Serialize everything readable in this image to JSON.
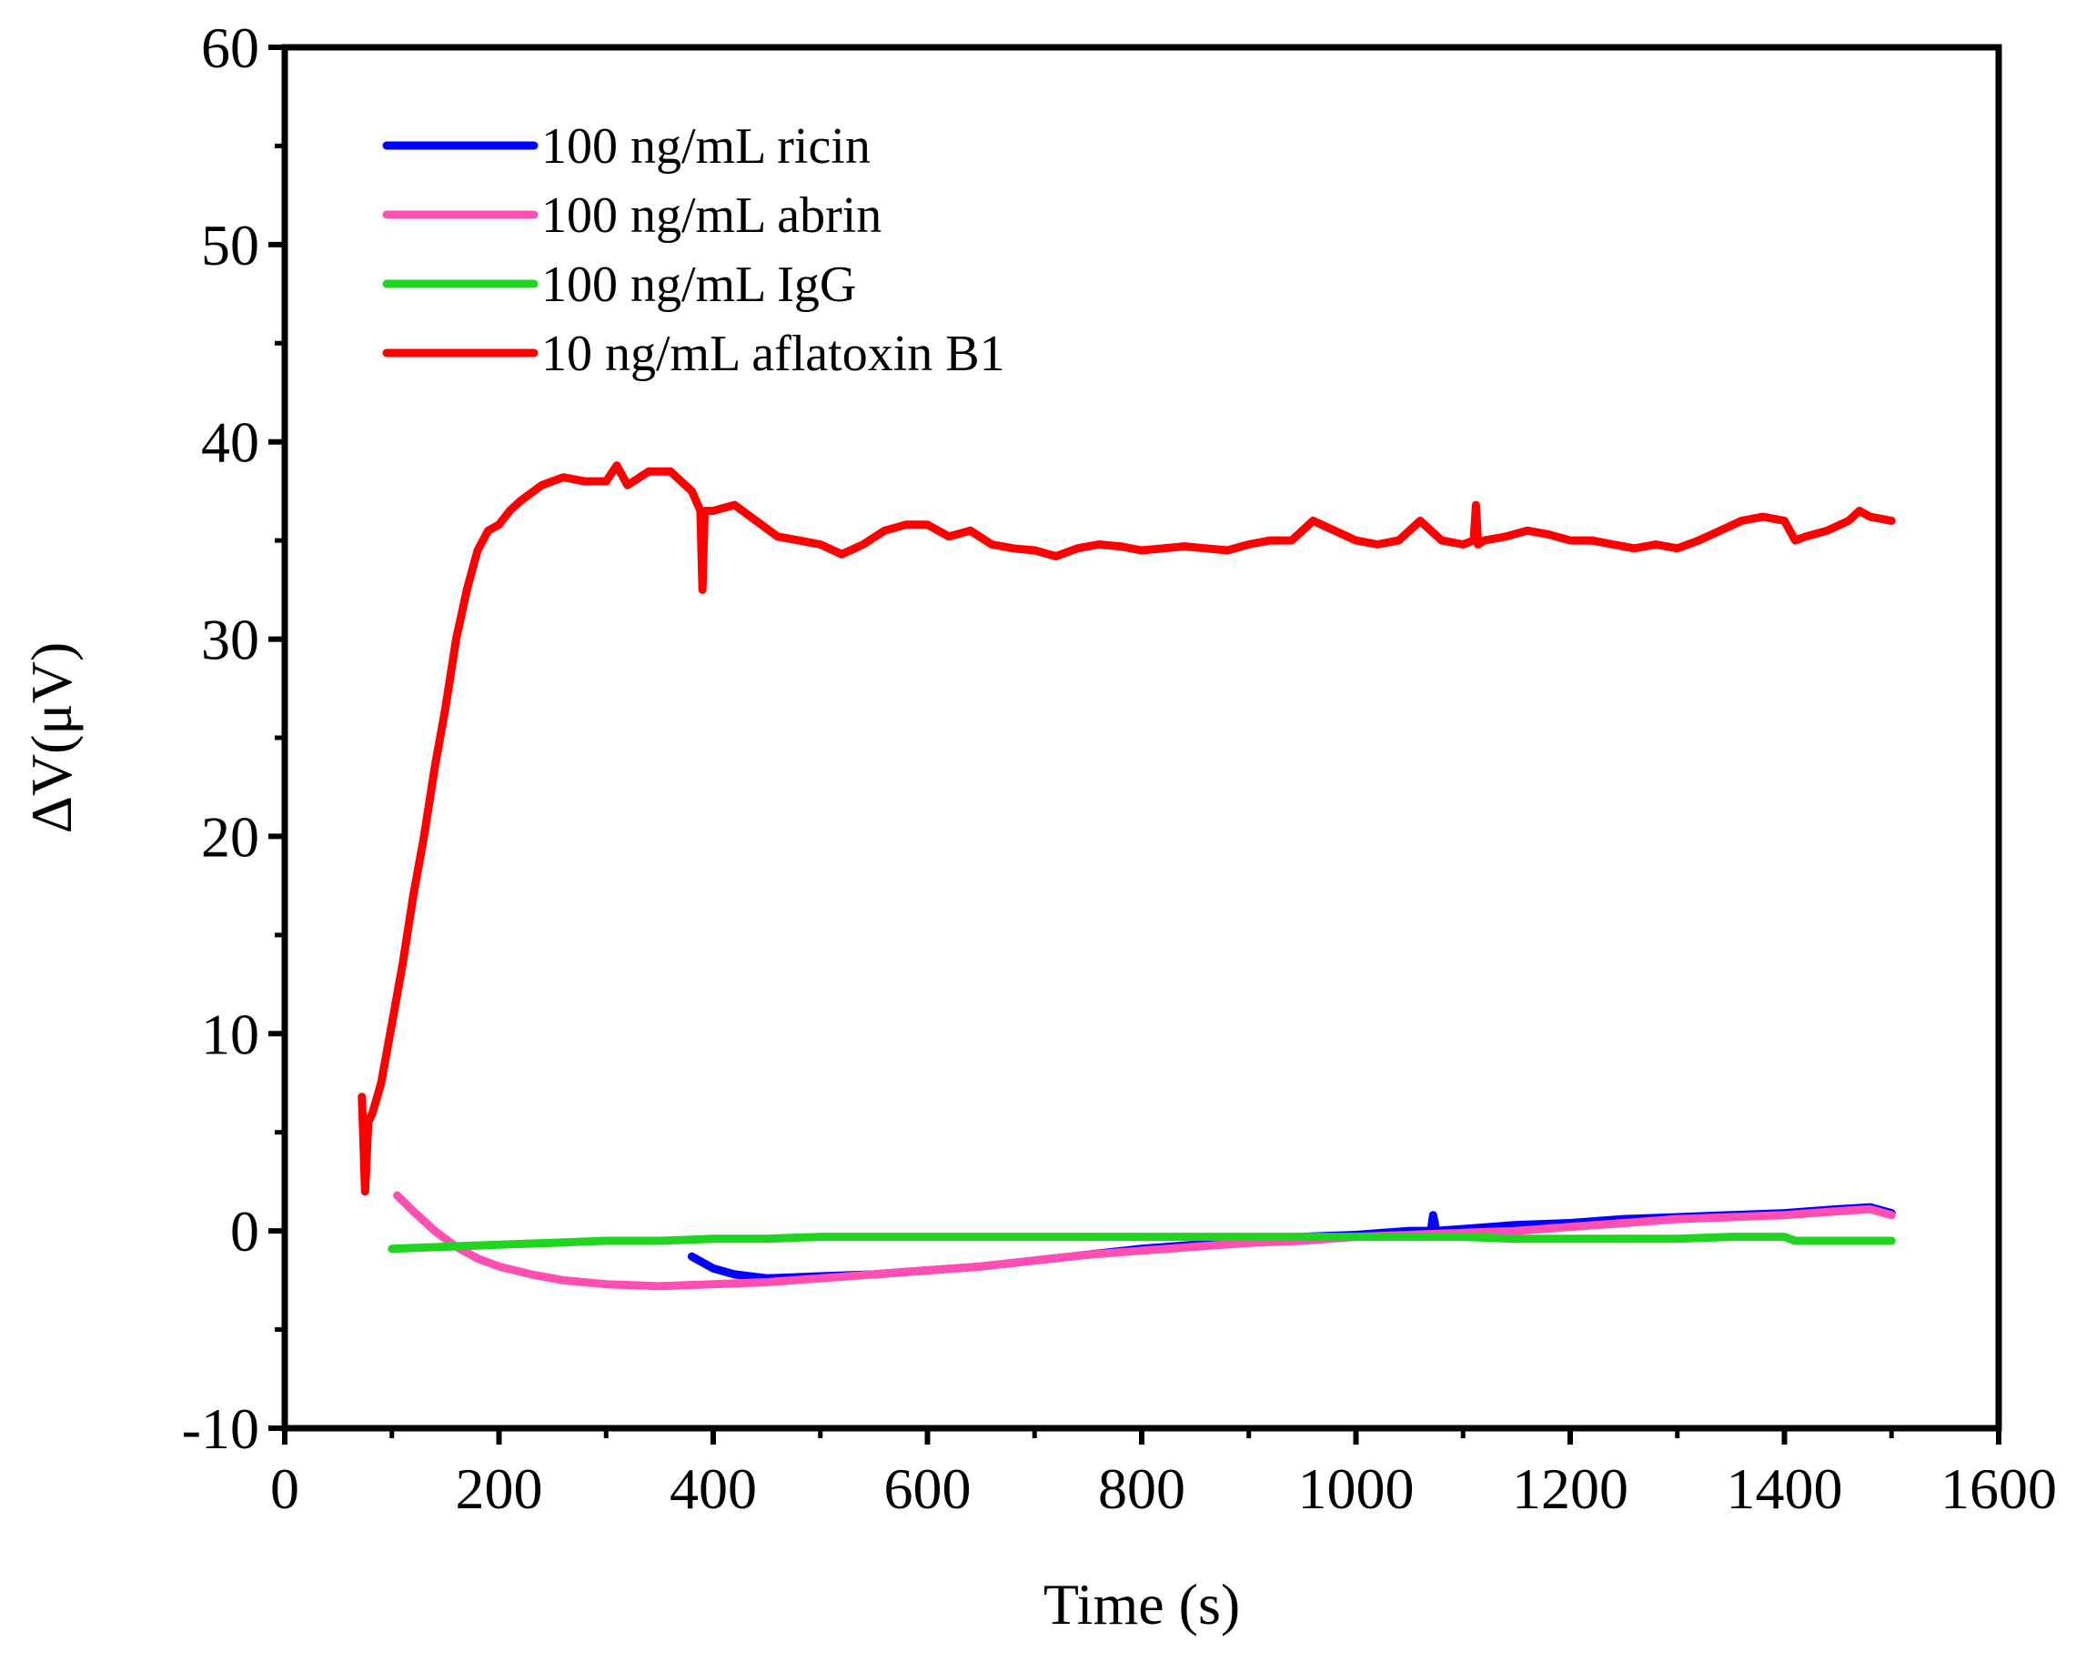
{
  "chart_data": {
    "type": "line",
    "title": "",
    "xlabel": "Time (s)",
    "ylabel": "ΔV(μV)",
    "xlim": [
      0,
      1600
    ],
    "ylim": [
      -10,
      60
    ],
    "xticks": [
      0,
      200,
      400,
      600,
      800,
      1000,
      1200,
      1400,
      1600
    ],
    "yticks": [
      -10,
      0,
      10,
      20,
      30,
      40,
      50,
      60
    ],
    "xtick_labels": [
      "0",
      "200",
      "400",
      "600",
      "800",
      "1000",
      "1200",
      "1400",
      "1600"
    ],
    "ytick_labels": [
      "-10",
      "0",
      "10",
      "20",
      "30",
      "40",
      "50",
      "60"
    ],
    "grid": false,
    "legend_position": "top-left",
    "series": [
      {
        "name": "100 ng/mL ricin",
        "color": "#0000ff",
        "x": [
          380,
          400,
          420,
          450,
          500,
          550,
          600,
          650,
          700,
          750,
          800,
          850,
          900,
          950,
          1000,
          1050,
          1070,
          1072,
          1075,
          1100,
          1150,
          1200,
          1250,
          1300,
          1350,
          1400,
          1450,
          1480,
          1500
        ],
        "y": [
          -1.3,
          -1.9,
          -2.2,
          -2.4,
          -2.3,
          -2.2,
          -2.0,
          -1.8,
          -1.5,
          -1.2,
          -0.9,
          -0.7,
          -0.4,
          -0.3,
          -0.2,
          0.0,
          0.0,
          0.8,
          0.0,
          0.1,
          0.3,
          0.4,
          0.6,
          0.7,
          0.8,
          0.9,
          1.1,
          1.2,
          0.9
        ]
      },
      {
        "name": "100 ng/mL abrin",
        "color": "#ff4fb3",
        "x": [
          105,
          120,
          140,
          160,
          180,
          200,
          230,
          260,
          300,
          350,
          400,
          450,
          500,
          550,
          600,
          650,
          700,
          750,
          800,
          850,
          900,
          950,
          1000,
          1050,
          1100,
          1150,
          1200,
          1250,
          1300,
          1350,
          1400,
          1450,
          1480,
          1500
        ],
        "y": [
          1.8,
          1.0,
          0.0,
          -0.8,
          -1.4,
          -1.8,
          -2.2,
          -2.5,
          -2.7,
          -2.8,
          -2.7,
          -2.6,
          -2.4,
          -2.2,
          -2.0,
          -1.8,
          -1.5,
          -1.2,
          -1.0,
          -0.8,
          -0.6,
          -0.5,
          -0.3,
          -0.2,
          -0.1,
          0.0,
          0.2,
          0.4,
          0.6,
          0.7,
          0.8,
          1.0,
          1.1,
          0.8
        ]
      },
      {
        "name": "100 ng/mL IgG",
        "color": "#22d422",
        "x": [
          100,
          150,
          200,
          250,
          300,
          350,
          400,
          450,
          500,
          550,
          600,
          650,
          700,
          750,
          800,
          850,
          900,
          950,
          1000,
          1050,
          1100,
          1150,
          1200,
          1250,
          1300,
          1350,
          1400,
          1410,
          1450,
          1500
        ],
        "y": [
          -0.9,
          -0.8,
          -0.7,
          -0.6,
          -0.5,
          -0.5,
          -0.4,
          -0.4,
          -0.3,
          -0.3,
          -0.3,
          -0.3,
          -0.3,
          -0.3,
          -0.3,
          -0.3,
          -0.3,
          -0.3,
          -0.3,
          -0.3,
          -0.3,
          -0.4,
          -0.4,
          -0.4,
          -0.4,
          -0.3,
          -0.3,
          -0.5,
          -0.5,
          -0.5
        ]
      },
      {
        "name": "10 ng/mL aflatoxin B1",
        "color": "#ff0000",
        "x": [
          72,
          75,
          78,
          82,
          90,
          100,
          110,
          120,
          130,
          140,
          150,
          160,
          170,
          180,
          190,
          200,
          210,
          220,
          240,
          260,
          280,
          300,
          310,
          320,
          340,
          360,
          380,
          388,
          390,
          392,
          400,
          420,
          440,
          460,
          480,
          500,
          520,
          540,
          560,
          580,
          600,
          620,
          640,
          660,
          680,
          700,
          720,
          740,
          760,
          780,
          800,
          820,
          840,
          860,
          880,
          900,
          920,
          940,
          960,
          980,
          1000,
          1020,
          1040,
          1060,
          1080,
          1100,
          1110,
          1112,
          1114,
          1120,
          1140,
          1160,
          1180,
          1200,
          1220,
          1240,
          1260,
          1280,
          1300,
          1320,
          1340,
          1360,
          1380,
          1400,
          1410,
          1420,
          1440,
          1460,
          1470,
          1480,
          1500
        ],
        "y": [
          6.8,
          2.0,
          5.5,
          6.0,
          7.5,
          10.5,
          13.5,
          17.0,
          20.0,
          23.5,
          26.5,
          30.0,
          32.5,
          34.5,
          35.5,
          35.8,
          36.5,
          37.0,
          37.8,
          38.2,
          38.0,
          38.0,
          38.8,
          37.8,
          38.5,
          38.5,
          37.5,
          36.5,
          32.5,
          36.5,
          36.5,
          36.8,
          36.0,
          35.2,
          35.0,
          34.8,
          34.3,
          34.8,
          35.5,
          35.8,
          35.8,
          35.2,
          35.5,
          34.8,
          34.6,
          34.5,
          34.2,
          34.6,
          34.8,
          34.7,
          34.5,
          34.6,
          34.7,
          34.6,
          34.5,
          34.8,
          35.0,
          35.0,
          36.0,
          35.5,
          35.0,
          34.8,
          35.0,
          36.0,
          35.0,
          34.8,
          35.0,
          36.8,
          34.8,
          35.0,
          35.2,
          35.5,
          35.3,
          35.0,
          35.0,
          34.8,
          34.6,
          34.8,
          34.6,
          35.0,
          35.5,
          36.0,
          36.2,
          36.0,
          35.0,
          35.2,
          35.5,
          36.0,
          36.5,
          36.2,
          36.0
        ]
      }
    ]
  }
}
